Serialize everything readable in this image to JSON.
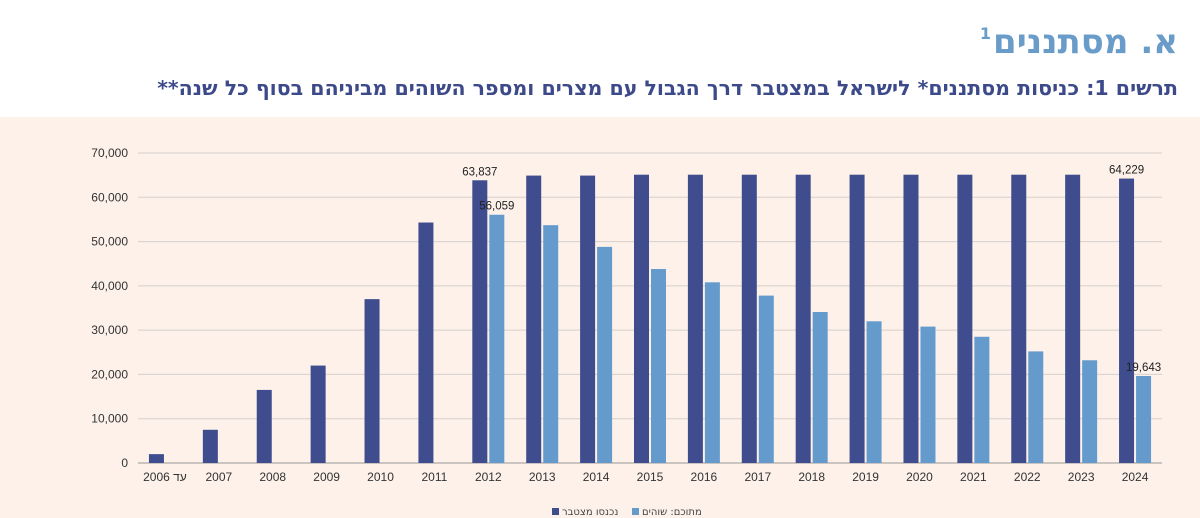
{
  "section": {
    "title": "א. מסתננים",
    "footnote_mark": "1"
  },
  "chart_title": "תרשים 1: כניסות מסתננים* לישראל במצטבר דרך הגבול עם מצרים ומספר השוהים מביניהם בסוף כל שנה**",
  "colors": {
    "cumulative": "#3f4c8e",
    "remaining": "#649bcc",
    "panel_bg": "#fdf1ea",
    "grid": "#d7d0cc"
  },
  "chart_data": {
    "type": "bar",
    "categories": [
      "עד 2006",
      "2007",
      "2008",
      "2009",
      "2010",
      "2011",
      "2012",
      "2013",
      "2014",
      "2015",
      "2016",
      "2017",
      "2018",
      "2019",
      "2020",
      "2021",
      "2022",
      "2023",
      "2024"
    ],
    "series": [
      {
        "name": "נכנסו מצטבר",
        "color": "#3f4c8e",
        "values": [
          2000,
          7500,
          16500,
          22000,
          37000,
          54300,
          63837,
          64900,
          64900,
          65100,
          65100,
          65100,
          65100,
          65100,
          65100,
          65100,
          65100,
          65100,
          64229
        ]
      },
      {
        "name": "מתוכם: שוהים",
        "color": "#649bcc",
        "values": [
          null,
          null,
          null,
          null,
          null,
          null,
          56059,
          53700,
          48800,
          43800,
          40800,
          37800,
          34100,
          32000,
          30800,
          28500,
          25200,
          23200,
          19643
        ]
      }
    ],
    "data_labels": [
      {
        "series": 0,
        "index": 6,
        "text": "63,837"
      },
      {
        "series": 1,
        "index": 6,
        "text": "56,059"
      },
      {
        "series": 0,
        "index": 18,
        "text": "64,229"
      },
      {
        "series": 1,
        "index": 18,
        "text": "19,643"
      }
    ],
    "y_ticks": [
      "0",
      "10,000",
      "20,000",
      "30,000",
      "40,000",
      "50,000",
      "60,000",
      "70,000"
    ],
    "ylim": [
      0,
      70000
    ],
    "grid": true,
    "legend_position": "bottom-center"
  }
}
